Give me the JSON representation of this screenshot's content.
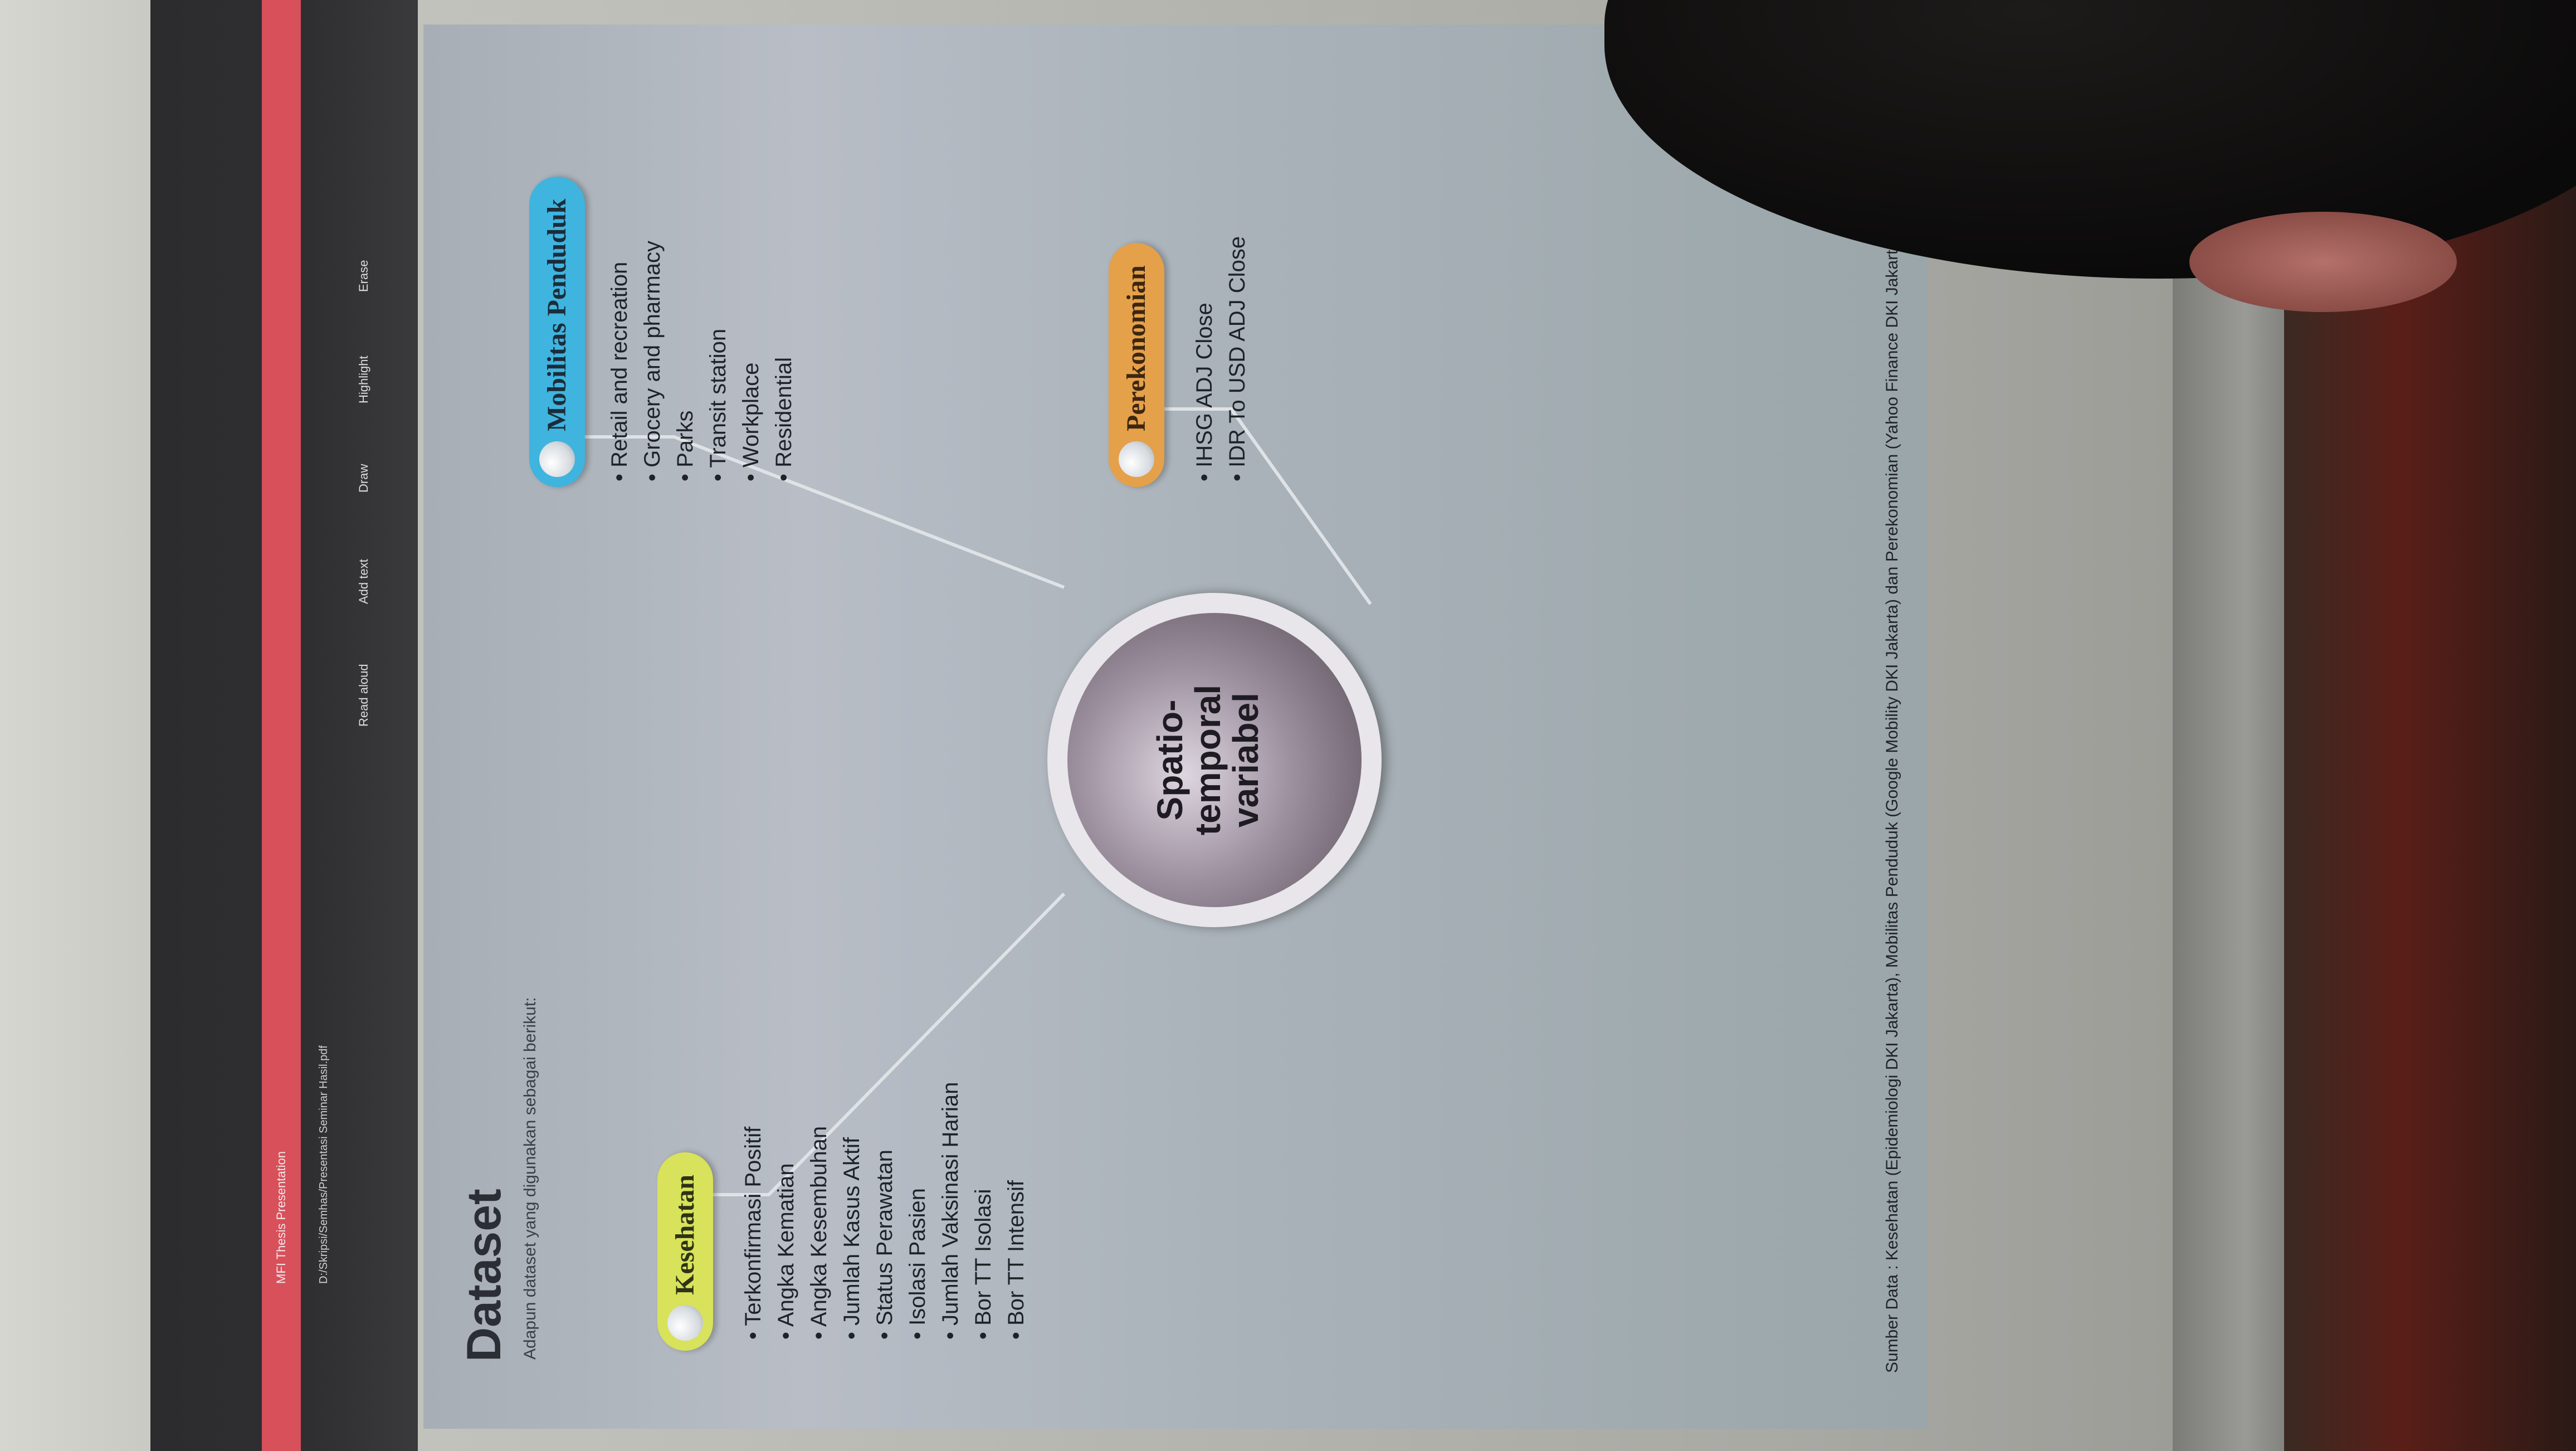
{
  "browser": {
    "tab_title": "MFI Thesis Presentation",
    "url": "D:/Skripsi/Semhas/Presentasi Seminar Hasil.pdf",
    "tools": [
      "Read aloud",
      "Add text",
      "Draw",
      "Highlight",
      "Erase"
    ]
  },
  "slide": {
    "title": "Dataset",
    "subtitle": "Adapun dataset yang digunakan sebagai berikut:",
    "hub_line1": "Spatio-",
    "hub_line2": "temporal",
    "hub_line3": "variabel",
    "kesehatan": {
      "label": "Kesehatan",
      "items": [
        "Terkonfirmasi Positif",
        "Angka Kematian",
        "Angka Kesembuhan",
        "Jumlah Kasus Aktif",
        "Status Perawatan",
        "Isolasi Pasien",
        "Jumlah Vaksinasi Harian",
        "Bor TT Isolasi",
        "Bor TT Intensif"
      ]
    },
    "mobilitas": {
      "label": "Mobilitas Penduduk",
      "items": [
        "Retail and recreation",
        "Grocery and pharmacy",
        "Parks",
        "Transit station",
        "Workplace",
        "Residential"
      ]
    },
    "perekonomian": {
      "label": "Perekonomian",
      "items": [
        "IHSG ADJ Close",
        "IDR To USD ADJ Close"
      ]
    },
    "source": "Sumber Data : Kesehatan (Epidemiologi DKI Jakarta), Mobilitas Penduduk (Google Mobility DKI Jakarta) dan Perekonomian (Yahoo Finance DKI Jakarta)"
  },
  "colors": {
    "tab_accent": "#d8505a",
    "kesehatan": "#d8e25a",
    "mobilitas": "#3fb4de",
    "perekonomian": "#e5a04a"
  }
}
